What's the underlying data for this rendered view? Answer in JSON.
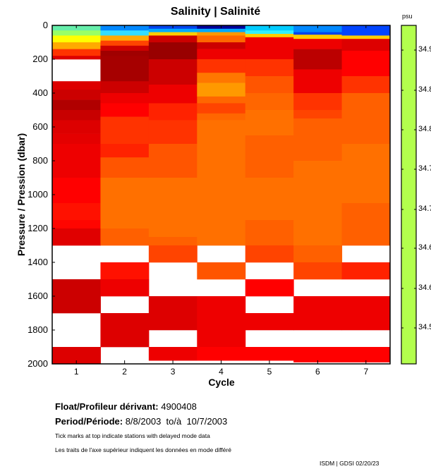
{
  "chart_data": {
    "type": "heatmap",
    "title": "Salinity | Salinité",
    "xlabel": "Cycle",
    "ylabel": "Pressure / Pression (dbar)",
    "x_categories": [
      "1",
      "2",
      "3",
      "4",
      "5",
      "6",
      "7"
    ],
    "y_ticks": [
      "0",
      "200",
      "400",
      "600",
      "800",
      "1000",
      "1200",
      "1400",
      "1600",
      "1800",
      "2000"
    ],
    "ylim": [
      0,
      2000
    ],
    "y_inverted": true,
    "colorbar": {
      "unit": "psu",
      "color": "#b3ff4d",
      "tick_labels": [
        "34.9",
        "34.8",
        "34.8",
        "34.7",
        "34.7",
        "34.6",
        "34.6",
        "34.5"
      ],
      "tick_labels_note": "labels truncated at image edge"
    },
    "columns": [
      {
        "cycle": 1,
        "bands": [
          [
            0,
            30,
            "#66eeaa"
          ],
          [
            30,
            60,
            "#99ff66"
          ],
          [
            60,
            100,
            "#ffff00"
          ],
          [
            100,
            140,
            "#ffaa00"
          ],
          [
            140,
            180,
            "#ff3300"
          ],
          [
            180,
            200,
            "#dd0000"
          ],
          [
            200,
            330,
            null
          ],
          [
            330,
            380,
            "#dd0000"
          ],
          [
            380,
            440,
            "#cc0000"
          ],
          [
            440,
            500,
            "#b00000"
          ],
          [
            500,
            560,
            "#c80000"
          ],
          [
            560,
            640,
            "#dd0000"
          ],
          [
            640,
            700,
            "#e40000"
          ],
          [
            700,
            900,
            "#ee0000"
          ],
          [
            900,
            1050,
            "#ff0000"
          ],
          [
            1050,
            1150,
            "#ff1100"
          ],
          [
            1150,
            1200,
            "#ff0500"
          ],
          [
            1200,
            1300,
            "#e00000"
          ],
          [
            1300,
            1500,
            null
          ],
          [
            1500,
            1700,
            "#cc0000"
          ],
          [
            1700,
            1900,
            null
          ],
          [
            1900,
            2000,
            "#dd0000"
          ]
        ]
      },
      {
        "cycle": 2,
        "bands": [
          [
            0,
            30,
            "#0088ff"
          ],
          [
            30,
            60,
            "#33ddff"
          ],
          [
            60,
            90,
            "#ffaa00"
          ],
          [
            90,
            120,
            "#ff4400"
          ],
          [
            120,
            150,
            "#cc0000"
          ],
          [
            150,
            180,
            "#a00000"
          ],
          [
            180,
            330,
            "#a60000"
          ],
          [
            330,
            400,
            "#cc0000"
          ],
          [
            400,
            460,
            "#ee0000"
          ],
          [
            460,
            540,
            "#ff0000"
          ],
          [
            540,
            600,
            "#ff3300"
          ],
          [
            600,
            700,
            "#ff3300"
          ],
          [
            700,
            780,
            "#ff2200"
          ],
          [
            780,
            900,
            "#ff5500"
          ],
          [
            900,
            1200,
            "#ff7000"
          ],
          [
            1200,
            1300,
            "#ff6000"
          ],
          [
            1300,
            1400,
            null
          ],
          [
            1400,
            1500,
            "#ff1100"
          ],
          [
            1500,
            1600,
            "#ee0000"
          ],
          [
            1600,
            1700,
            null
          ],
          [
            1700,
            1900,
            "#dd0000"
          ],
          [
            1900,
            2000,
            null
          ]
        ]
      },
      {
        "cycle": 3,
        "bands": [
          [
            0,
            20,
            "#0044ee"
          ],
          [
            20,
            40,
            "#00aaff"
          ],
          [
            40,
            60,
            "#ffcc00"
          ],
          [
            60,
            100,
            "#cc0000"
          ],
          [
            100,
            200,
            "#990000"
          ],
          [
            200,
            350,
            "#cc0000"
          ],
          [
            350,
            460,
            "#ee0000"
          ],
          [
            460,
            560,
            "#ff2200"
          ],
          [
            560,
            700,
            "#ff3300"
          ],
          [
            700,
            900,
            "#ff5500"
          ],
          [
            900,
            1250,
            "#ff7000"
          ],
          [
            1250,
            1300,
            "#ff6000"
          ],
          [
            1300,
            1400,
            "#ff4400"
          ],
          [
            1400,
            1600,
            null
          ],
          [
            1600,
            1800,
            "#dd0000"
          ],
          [
            1800,
            1900,
            null
          ],
          [
            1900,
            1980,
            "#ee0000"
          ]
        ]
      },
      {
        "cycle": 4,
        "bands": [
          [
            0,
            20,
            "#000099"
          ],
          [
            20,
            40,
            "#00aaff"
          ],
          [
            40,
            60,
            "#ff9900"
          ],
          [
            60,
            100,
            "#ff6600"
          ],
          [
            100,
            140,
            "#cc0000"
          ],
          [
            140,
            200,
            "#ee0000"
          ],
          [
            200,
            280,
            "#ff3300"
          ],
          [
            280,
            340,
            "#ff7700"
          ],
          [
            340,
            420,
            "#ff9900"
          ],
          [
            420,
            460,
            "#ff6600"
          ],
          [
            460,
            520,
            "#ff4400"
          ],
          [
            520,
            560,
            "#ff6600"
          ],
          [
            560,
            1300,
            "#ff7000"
          ],
          [
            1300,
            1400,
            null
          ],
          [
            1400,
            1500,
            "#ff5500"
          ],
          [
            1500,
            1600,
            null
          ],
          [
            1600,
            1900,
            "#ee0000"
          ],
          [
            1900,
            1980,
            "#ff0000"
          ]
        ]
      },
      {
        "cycle": 5,
        "bands": [
          [
            0,
            30,
            "#00ccff"
          ],
          [
            30,
            50,
            "#33eeff"
          ],
          [
            50,
            70,
            "#ffcc00"
          ],
          [
            70,
            200,
            "#ee0000"
          ],
          [
            200,
            300,
            "#ff3300"
          ],
          [
            300,
            400,
            "#ff5500"
          ],
          [
            400,
            500,
            "#ff6600"
          ],
          [
            500,
            650,
            "#ff7000"
          ],
          [
            650,
            900,
            "#ff6000"
          ],
          [
            900,
            1150,
            "#ff7000"
          ],
          [
            1150,
            1300,
            "#ff6000"
          ],
          [
            1300,
            1400,
            "#ff4400"
          ],
          [
            1400,
            1500,
            null
          ],
          [
            1500,
            1600,
            "#ff0000"
          ],
          [
            1600,
            1700,
            null
          ],
          [
            1700,
            1800,
            "#ee0000"
          ],
          [
            1800,
            1900,
            null
          ],
          [
            1900,
            1980,
            "#ff0000"
          ]
        ]
      },
      {
        "cycle": 6,
        "bands": [
          [
            0,
            40,
            "#0088ff"
          ],
          [
            40,
            55,
            "#0044ee"
          ],
          [
            55,
            80,
            "#ffcc00"
          ],
          [
            80,
            140,
            "#ee0000"
          ],
          [
            140,
            260,
            "#bb0000"
          ],
          [
            260,
            400,
            "#ee0000"
          ],
          [
            400,
            500,
            "#ff3300"
          ],
          [
            500,
            550,
            "#ff4400"
          ],
          [
            550,
            800,
            "#ff6000"
          ],
          [
            800,
            1300,
            "#ff7000"
          ],
          [
            1300,
            1400,
            "#ff6000"
          ],
          [
            1400,
            1500,
            "#ff4400"
          ],
          [
            1500,
            1600,
            null
          ],
          [
            1600,
            1800,
            "#ee0000"
          ],
          [
            1800,
            1900,
            null
          ],
          [
            1900,
            1990,
            "#ff0000"
          ]
        ]
      },
      {
        "cycle": 7,
        "bands": [
          [
            0,
            60,
            "#0044ff"
          ],
          [
            60,
            80,
            "#ffcc00"
          ],
          [
            80,
            150,
            "#dd0000"
          ],
          [
            150,
            300,
            "#ff0000"
          ],
          [
            300,
            400,
            "#ff3300"
          ],
          [
            400,
            700,
            "#ff6000"
          ],
          [
            700,
            1050,
            "#ff7000"
          ],
          [
            1050,
            1300,
            "#ff6000"
          ],
          [
            1300,
            1400,
            null
          ],
          [
            1400,
            1500,
            "#ff2200"
          ],
          [
            1500,
            1600,
            null
          ],
          [
            1600,
            1800,
            "#ee0000"
          ],
          [
            1800,
            1900,
            null
          ],
          [
            1900,
            1990,
            "#ff0000"
          ]
        ]
      }
    ]
  },
  "info": {
    "float_label": "Float/Profileur dérivant:",
    "float_value": "4900408",
    "period_label": "Period/Période:",
    "period_value": "8/8/2003  to/à  10/7/2003",
    "note_en": "Tick marks at top indicate stations with delayed mode data",
    "note_fr": "Les traits de l'axe supérieur indiquent les données en mode différé",
    "credit": "ISDM | GDSI  02/20/23"
  }
}
